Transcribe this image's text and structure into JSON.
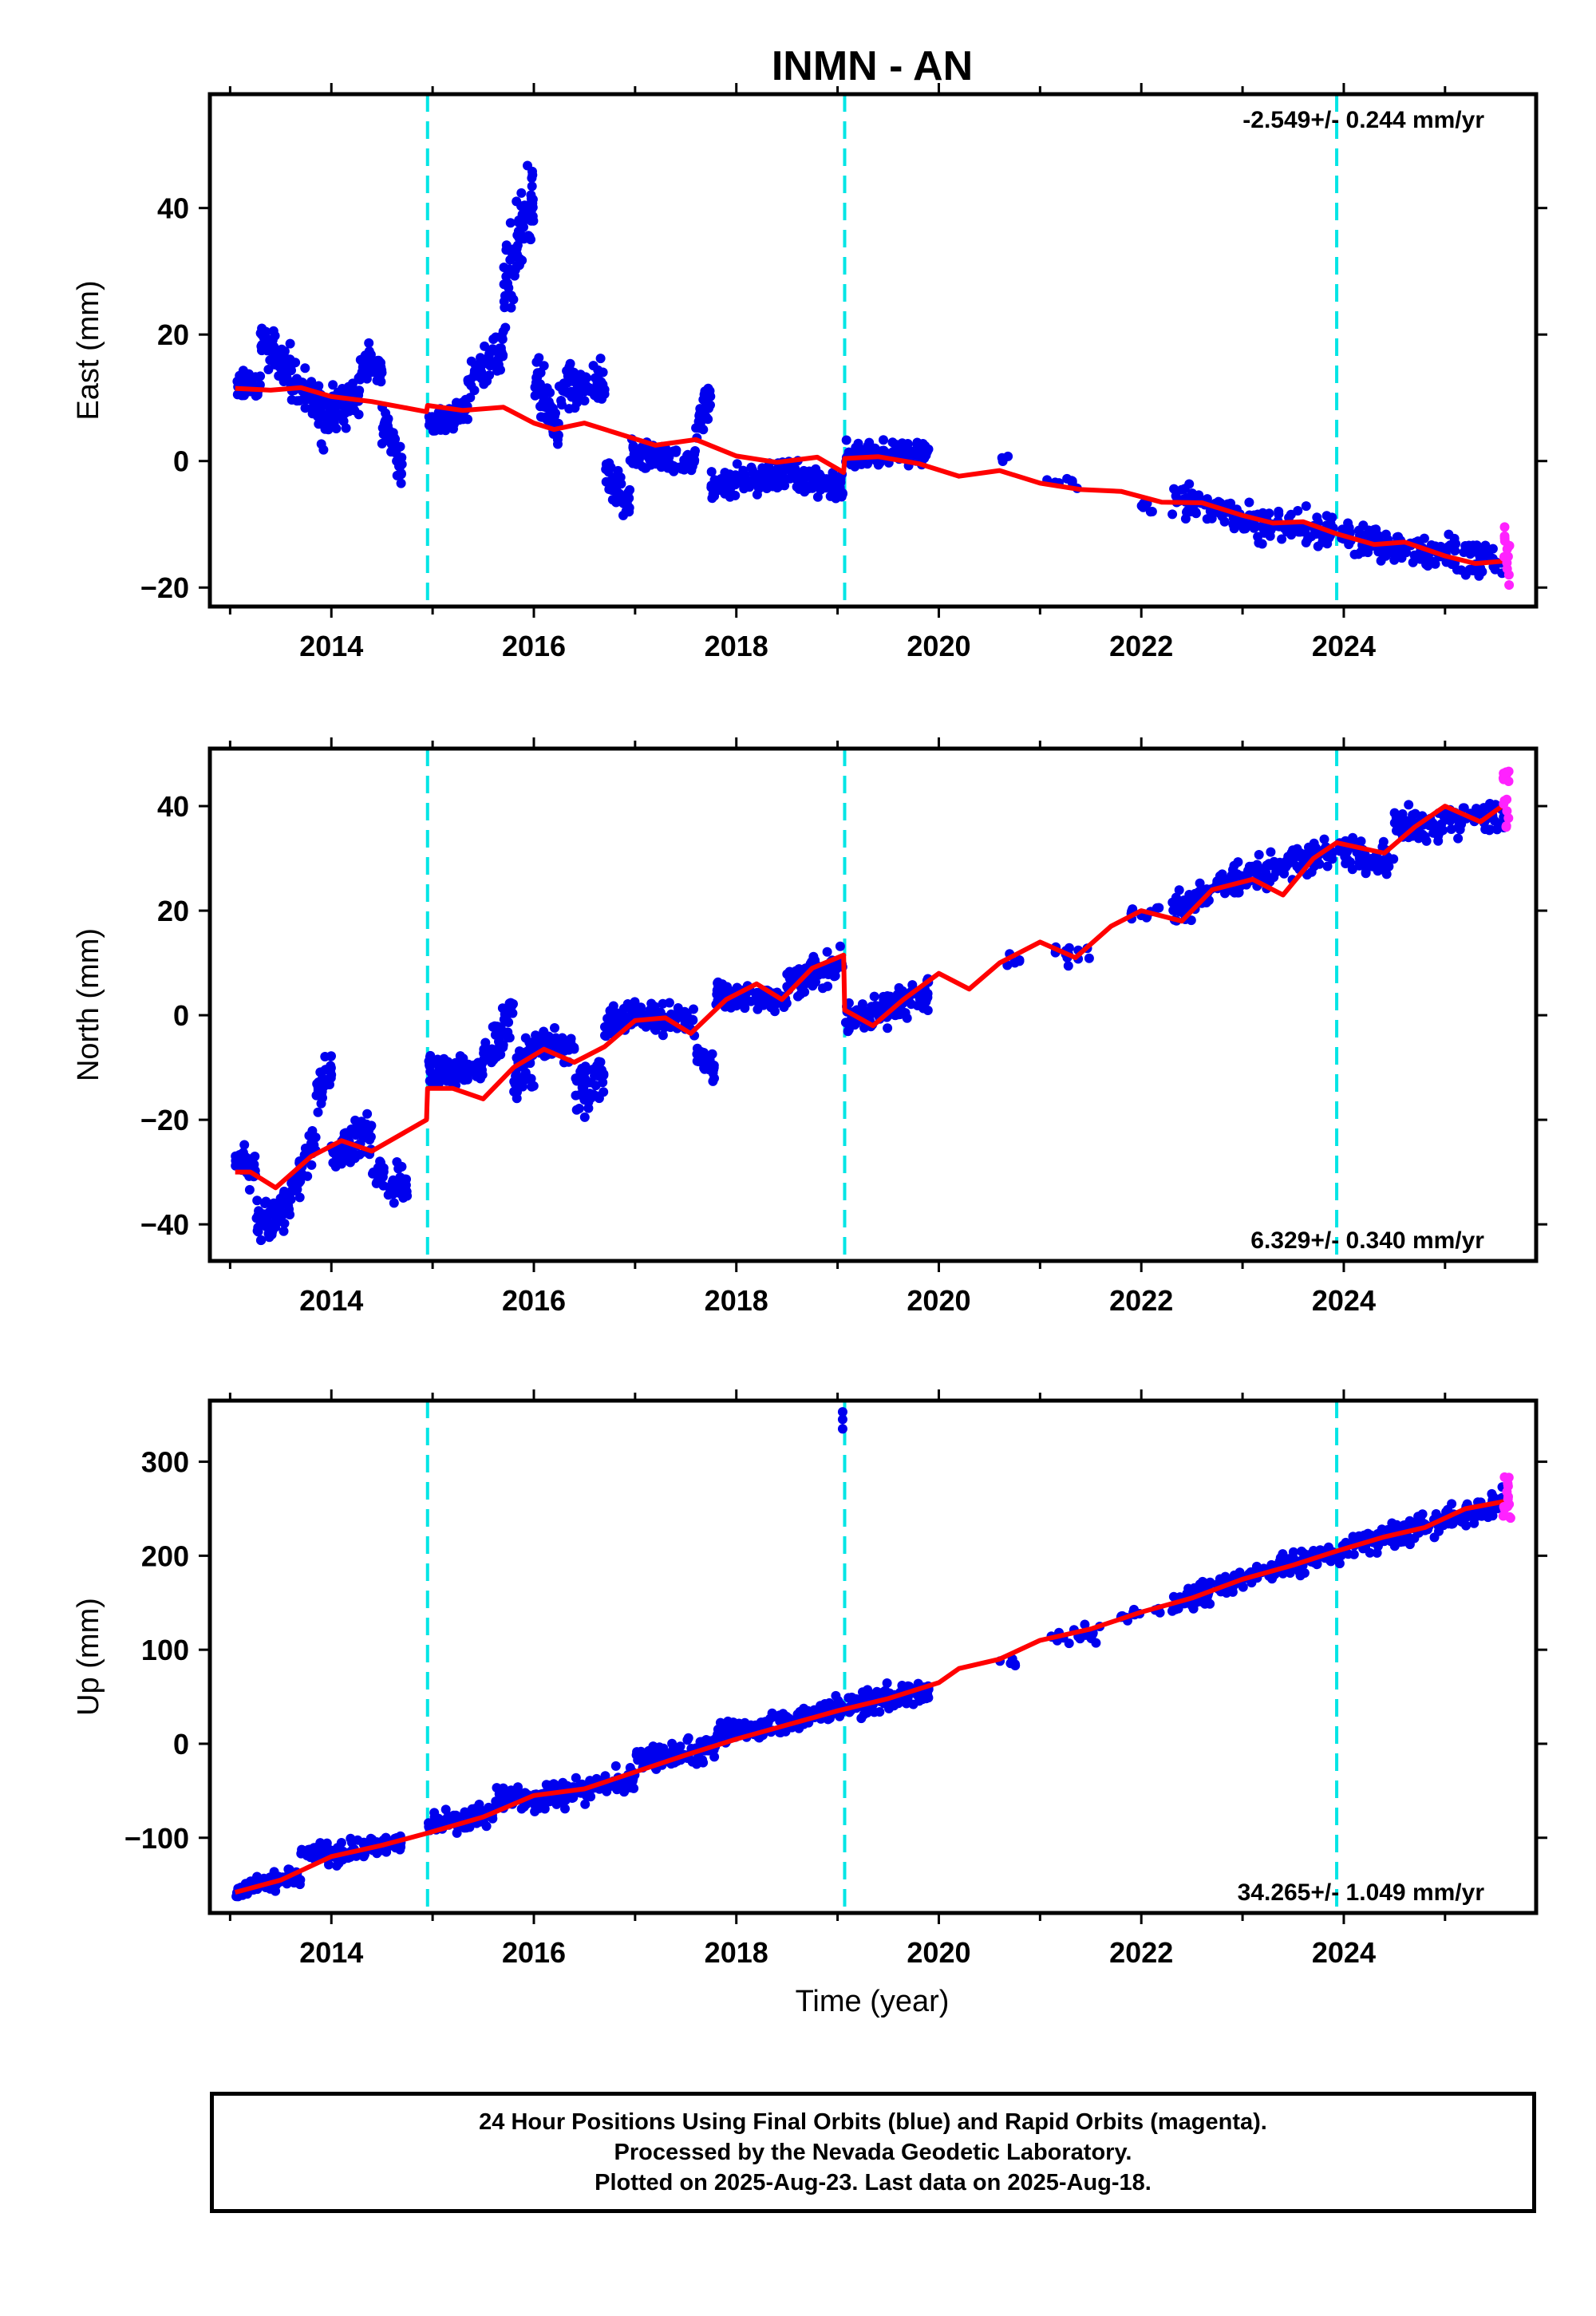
{
  "page": {
    "title": "INMN - AN",
    "xlabel": "Time (year)",
    "footer_lines": [
      "24 Hour Positions Using Final Orbits (blue) and Rapid Orbits (magenta).",
      "Processed by the Nevada Geodetic Laboratory.",
      "Plotted on 2025-Aug-23. Last data on 2025-Aug-18."
    ]
  },
  "colors": {
    "final_orbits": "#0000ee",
    "rapid_orbits": "#ff22ff",
    "model": "#ff0000",
    "breaks": "#00e5e5"
  },
  "chart_data": [
    {
      "type": "scatter",
      "component": "east",
      "ylabel": "East (mm)",
      "rate": "-2.549+/- 0.244 mm/yr",
      "xlim": [
        2012.8,
        2025.9
      ],
      "ylim": [
        -23,
        58
      ],
      "yticks": [
        -20,
        0,
        20,
        40
      ],
      "xticks": [
        2014,
        2016,
        2018,
        2020,
        2022,
        2024
      ],
      "breaks": [
        2014.95,
        2019.07,
        2023.93
      ],
      "model": [
        [
          2013.05,
          11.5
        ],
        [
          2013.4,
          11.2
        ],
        [
          2013.7,
          11.6
        ],
        [
          2014.0,
          10.2
        ],
        [
          2014.4,
          9.4
        ],
        [
          2014.94,
          7.8
        ],
        [
          2014.95,
          8.8
        ],
        [
          2015.3,
          8.0
        ],
        [
          2015.7,
          8.5
        ],
        [
          2016.0,
          6.0
        ],
        [
          2016.2,
          5.0
        ],
        [
          2016.5,
          6.0
        ],
        [
          2016.8,
          4.5
        ],
        [
          2017.2,
          2.5
        ],
        [
          2017.6,
          3.4
        ],
        [
          2018.0,
          0.8
        ],
        [
          2018.4,
          -0.2
        ],
        [
          2018.8,
          0.6
        ],
        [
          2019.06,
          -1.8
        ],
        [
          2019.07,
          0.4
        ],
        [
          2019.4,
          0.7
        ],
        [
          2019.8,
          -0.4
        ],
        [
          2020.2,
          -2.4
        ],
        [
          2020.6,
          -1.5
        ],
        [
          2021.0,
          -3.5
        ],
        [
          2021.4,
          -4.5
        ],
        [
          2021.8,
          -4.8
        ],
        [
          2022.2,
          -6.5
        ],
        [
          2022.6,
          -6.6
        ],
        [
          2023.0,
          -8.6
        ],
        [
          2023.3,
          -9.8
        ],
        [
          2023.6,
          -9.6
        ],
        [
          2023.93,
          -11.5
        ],
        [
          2024.3,
          -13.2
        ],
        [
          2024.6,
          -12.8
        ],
        [
          2025.0,
          -15.0
        ],
        [
          2025.3,
          -16.2
        ],
        [
          2025.6,
          -15.8
        ]
      ],
      "scatter_segments": [
        {
          "x0": 2013.05,
          "x1": 2013.3,
          "y0": 12,
          "y1": 12,
          "spread": 2.0,
          "n": 50
        },
        {
          "x0": 2013.3,
          "x1": 2013.6,
          "y0": 19,
          "y1": 15,
          "spread": 3.0,
          "n": 60
        },
        {
          "x0": 2013.6,
          "x1": 2013.9,
          "y0": 13,
          "y1": 9,
          "spread": 3.0,
          "n": 60
        },
        {
          "x0": 2013.9,
          "x1": 2014.3,
          "y0": 6,
          "y1": 12,
          "spread": 4.0,
          "n": 70
        },
        {
          "x0": 2014.3,
          "x1": 2014.5,
          "y0": 16,
          "y1": 14,
          "spread": 2.5,
          "n": 50
        },
        {
          "x0": 2014.5,
          "x1": 2014.7,
          "y0": 6,
          "y1": 0,
          "spread": 3.0,
          "n": 50
        },
        {
          "x0": 2014.96,
          "x1": 2015.35,
          "y0": 6,
          "y1": 8,
          "spread": 2.0,
          "n": 70
        },
        {
          "x0": 2015.35,
          "x1": 2015.7,
          "y0": 12,
          "y1": 18,
          "spread": 3.0,
          "n": 60
        },
        {
          "x0": 2015.7,
          "x1": 2016.0,
          "y0": 25,
          "y1": 42,
          "spread": 7.0,
          "n": 80
        },
        {
          "x0": 2016.0,
          "x1": 2016.25,
          "y0": 14,
          "y1": 4,
          "spread": 4.0,
          "n": 50
        },
        {
          "x0": 2016.25,
          "x1": 2016.7,
          "y0": 11,
          "y1": 13,
          "spread": 3.5,
          "n": 70
        },
        {
          "x0": 2016.7,
          "x1": 2016.95,
          "y0": -2,
          "y1": -7,
          "spread": 2.5,
          "n": 40
        },
        {
          "x0": 2016.95,
          "x1": 2017.6,
          "y0": 1,
          "y1": 0,
          "spread": 2.0,
          "n": 90
        },
        {
          "x0": 2017.6,
          "x1": 2017.75,
          "y0": 6,
          "y1": 10,
          "spread": 2.5,
          "n": 30
        },
        {
          "x0": 2017.75,
          "x1": 2018.5,
          "y0": -4,
          "y1": -2,
          "spread": 2.5,
          "n": 100
        },
        {
          "x0": 2018.5,
          "x1": 2019.05,
          "y0": -2,
          "y1": -4,
          "spread": 2.5,
          "n": 80
        },
        {
          "x0": 2019.08,
          "x1": 2019.9,
          "y0": 1,
          "y1": 1.5,
          "spread": 2.0,
          "n": 110
        },
        {
          "x0": 2020.6,
          "x1": 2020.7,
          "y0": 0,
          "y1": 0,
          "spread": 1.0,
          "n": 4
        },
        {
          "x0": 2021.05,
          "x1": 2021.5,
          "y0": -3.5,
          "y1": -3.5,
          "spread": 1.0,
          "n": 8
        },
        {
          "x0": 2022.0,
          "x1": 2022.3,
          "y0": -7,
          "y1": -7,
          "spread": 1.0,
          "n": 6
        },
        {
          "x0": 2022.3,
          "x1": 2022.9,
          "y0": -6,
          "y1": -8,
          "spread": 2.0,
          "n": 60
        },
        {
          "x0": 2022.9,
          "x1": 2023.9,
          "y0": -9.5,
          "y1": -11,
          "spread": 2.5,
          "n": 110
        },
        {
          "x0": 2023.95,
          "x1": 2025.6,
          "y0": -12,
          "y1": -16,
          "spread": 2.5,
          "n": 170
        }
      ],
      "rapid": {
        "x0": 2025.57,
        "x1": 2025.65,
        "y0": -20,
        "y1": -10,
        "n": 14
      }
    },
    {
      "type": "scatter",
      "component": "north",
      "ylabel": "North (mm)",
      "rate": "6.329+/- 0.340 mm/yr",
      "xlim": [
        2012.8,
        2025.9
      ],
      "ylim": [
        -47,
        51
      ],
      "yticks": [
        -40,
        -20,
        0,
        20,
        40
      ],
      "xticks": [
        2014,
        2016,
        2018,
        2020,
        2022,
        2024
      ],
      "breaks": [
        2014.95,
        2019.07,
        2023.93
      ],
      "model": [
        [
          2013.05,
          -30.0
        ],
        [
          2013.2,
          -30.0
        ],
        [
          2013.45,
          -33.0
        ],
        [
          2013.8,
          -27.0
        ],
        [
          2014.1,
          -24.0
        ],
        [
          2014.4,
          -26.0
        ],
        [
          2014.94,
          -20.0
        ],
        [
          2014.95,
          -14.0
        ],
        [
          2015.2,
          -14.0
        ],
        [
          2015.5,
          -16.0
        ],
        [
          2015.8,
          -10.0
        ],
        [
          2016.1,
          -6.5
        ],
        [
          2016.4,
          -9.0
        ],
        [
          2016.7,
          -6.0
        ],
        [
          2017.0,
          -1.0
        ],
        [
          2017.3,
          -0.5
        ],
        [
          2017.55,
          -3.5
        ],
        [
          2017.9,
          3.0
        ],
        [
          2018.2,
          6.0
        ],
        [
          2018.45,
          3.0
        ],
        [
          2018.75,
          9.0
        ],
        [
          2019.06,
          11.5
        ],
        [
          2019.07,
          1.0
        ],
        [
          2019.35,
          -2.0
        ],
        [
          2019.65,
          3.0
        ],
        [
          2020.0,
          8.0
        ],
        [
          2020.3,
          5.0
        ],
        [
          2020.6,
          10.0
        ],
        [
          2021.0,
          14.0
        ],
        [
          2021.35,
          11.0
        ],
        [
          2021.7,
          17.0
        ],
        [
          2022.0,
          20.0
        ],
        [
          2022.4,
          18.0
        ],
        [
          2022.7,
          24.0
        ],
        [
          2023.1,
          26.0
        ],
        [
          2023.4,
          23.0
        ],
        [
          2023.7,
          30.0
        ],
        [
          2023.93,
          33.0
        ],
        [
          2024.4,
          31.0
        ],
        [
          2024.7,
          36.0
        ],
        [
          2025.0,
          40.0
        ],
        [
          2025.35,
          37.0
        ],
        [
          2025.6,
          40.5
        ]
      ],
      "scatter_segments": [
        {
          "x0": 2013.05,
          "x1": 2013.25,
          "y0": -28,
          "y1": -30,
          "spread": 3.0,
          "n": 40
        },
        {
          "x0": 2013.25,
          "x1": 2013.6,
          "y0": -40,
          "y1": -37,
          "spread": 4.0,
          "n": 60
        },
        {
          "x0": 2013.6,
          "x1": 2013.85,
          "y0": -34,
          "y1": -24,
          "spread": 4.0,
          "n": 50
        },
        {
          "x0": 2013.85,
          "x1": 2014.0,
          "y0": -15,
          "y1": -10,
          "spread": 5.0,
          "n": 40
        },
        {
          "x0": 2014.0,
          "x1": 2014.4,
          "y0": -26,
          "y1": -22,
          "spread": 4.0,
          "n": 60
        },
        {
          "x0": 2014.4,
          "x1": 2014.75,
          "y0": -30,
          "y1": -33,
          "spread": 4.0,
          "n": 50
        },
        {
          "x0": 2014.96,
          "x1": 2015.5,
          "y0": -11,
          "y1": -10,
          "spread": 3.0,
          "n": 80
        },
        {
          "x0": 2015.5,
          "x1": 2015.8,
          "y0": -8,
          "y1": 0,
          "spread": 4.0,
          "n": 50
        },
        {
          "x0": 2015.8,
          "x1": 2016.0,
          "y0": -12,
          "y1": -8,
          "spread": 6.0,
          "n": 40
        },
        {
          "x0": 2016.0,
          "x1": 2016.4,
          "y0": -5,
          "y1": -6,
          "spread": 3.0,
          "n": 60
        },
        {
          "x0": 2016.4,
          "x1": 2016.7,
          "y0": -14,
          "y1": -12,
          "spread": 5.0,
          "n": 50
        },
        {
          "x0": 2016.7,
          "x1": 2017.0,
          "y0": -2,
          "y1": 0,
          "spread": 3.0,
          "n": 50
        },
        {
          "x0": 2017.0,
          "x1": 2017.6,
          "y0": 0,
          "y1": -1,
          "spread": 2.5,
          "n": 80
        },
        {
          "x0": 2017.6,
          "x1": 2017.8,
          "y0": -8,
          "y1": -10,
          "spread": 3.0,
          "n": 30
        },
        {
          "x0": 2017.8,
          "x1": 2018.5,
          "y0": 4,
          "y1": 3,
          "spread": 2.5,
          "n": 90
        },
        {
          "x0": 2018.5,
          "x1": 2019.05,
          "y0": 6,
          "y1": 10,
          "spread": 3.0,
          "n": 80
        },
        {
          "x0": 2019.08,
          "x1": 2019.9,
          "y0": -1,
          "y1": 4,
          "spread": 3.0,
          "n": 110
        },
        {
          "x0": 2020.6,
          "x1": 2020.8,
          "y0": 9,
          "y1": 11,
          "spread": 1.5,
          "n": 6
        },
        {
          "x0": 2021.1,
          "x1": 2021.5,
          "y0": 12,
          "y1": 11,
          "spread": 2.0,
          "n": 14
        },
        {
          "x0": 2021.9,
          "x1": 2022.2,
          "y0": 19,
          "y1": 20,
          "spread": 1.5,
          "n": 10
        },
        {
          "x0": 2022.3,
          "x1": 2022.9,
          "y0": 20,
          "y1": 25,
          "spread": 3.0,
          "n": 70
        },
        {
          "x0": 2022.9,
          "x1": 2023.9,
          "y0": 26,
          "y1": 31,
          "spread": 3.0,
          "n": 110
        },
        {
          "x0": 2023.95,
          "x1": 2024.5,
          "y0": 32,
          "y1": 29,
          "spread": 3.0,
          "n": 60
        },
        {
          "x0": 2024.5,
          "x1": 2025.6,
          "y0": 36,
          "y1": 38,
          "spread": 3.0,
          "n": 120
        }
      ],
      "rapid": {
        "x0": 2025.57,
        "x1": 2025.65,
        "y0": 35,
        "y1": 47,
        "n": 14
      }
    },
    {
      "type": "scatter",
      "component": "up",
      "ylabel": "Up (mm)",
      "rate": "34.265+/- 1.049 mm/yr",
      "xlim": [
        2012.8,
        2025.9
      ],
      "ylim": [
        -180,
        365
      ],
      "yticks": [
        -100,
        0,
        100,
        200,
        300
      ],
      "xticks": [
        2014,
        2016,
        2018,
        2020,
        2022,
        2024
      ],
      "breaks": [
        2014.95,
        2019.07,
        2023.93
      ],
      "model": [
        [
          2013.05,
          -158.0
        ],
        [
          2013.5,
          -145.0
        ],
        [
          2014.0,
          -120.0
        ],
        [
          2014.5,
          -108.0
        ],
        [
          2014.95,
          -95.0
        ],
        [
          2015.5,
          -78.0
        ],
        [
          2016.0,
          -55.0
        ],
        [
          2016.5,
          -48.0
        ],
        [
          2017.0,
          -30.0
        ],
        [
          2017.5,
          -12.0
        ],
        [
          2018.0,
          5.0
        ],
        [
          2018.5,
          20.0
        ],
        [
          2019.0,
          35.0
        ],
        [
          2019.5,
          48.0
        ],
        [
          2020.0,
          65.0
        ],
        [
          2020.2,
          80.0
        ],
        [
          2020.6,
          90.0
        ],
        [
          2021.0,
          110.0
        ],
        [
          2021.5,
          122.0
        ],
        [
          2022.0,
          140.0
        ],
        [
          2022.5,
          155.0
        ],
        [
          2023.0,
          175.0
        ],
        [
          2023.5,
          190.0
        ],
        [
          2023.93,
          205.0
        ],
        [
          2024.4,
          220.0
        ],
        [
          2024.8,
          230.0
        ],
        [
          2025.2,
          250.0
        ],
        [
          2025.6,
          258.0
        ]
      ],
      "scatter_segments": [
        {
          "x0": 2013.05,
          "x1": 2013.7,
          "y0": -155,
          "y1": -140,
          "spread": 10,
          "n": 80
        },
        {
          "x0": 2013.7,
          "x1": 2014.1,
          "y0": -115,
          "y1": -115,
          "spread": 12,
          "n": 50
        },
        {
          "x0": 2014.1,
          "x1": 2014.7,
          "y0": -115,
          "y1": -105,
          "spread": 10,
          "n": 70
        },
        {
          "x0": 2014.96,
          "x1": 2015.6,
          "y0": -85,
          "y1": -75,
          "spread": 12,
          "n": 80
        },
        {
          "x0": 2015.6,
          "x1": 2016.3,
          "y0": -60,
          "y1": -50,
          "spread": 15,
          "n": 90
        },
        {
          "x0": 2016.3,
          "x1": 2017.0,
          "y0": -55,
          "y1": -35,
          "spread": 12,
          "n": 90
        },
        {
          "x0": 2017.0,
          "x1": 2017.8,
          "y0": -15,
          "y1": -5,
          "spread": 12,
          "n": 100
        },
        {
          "x0": 2017.8,
          "x1": 2018.6,
          "y0": 10,
          "y1": 25,
          "spread": 12,
          "n": 100
        },
        {
          "x0": 2018.6,
          "x1": 2019.05,
          "y0": 25,
          "y1": 38,
          "spread": 12,
          "n": 60
        },
        {
          "x0": 2019.08,
          "x1": 2019.9,
          "y0": 40,
          "y1": 55,
          "spread": 12,
          "n": 110
        },
        {
          "x0": 2020.6,
          "x1": 2020.8,
          "y0": 85,
          "y1": 88,
          "spread": 6,
          "n": 6
        },
        {
          "x0": 2021.1,
          "x1": 2021.6,
          "y0": 110,
          "y1": 118,
          "spread": 8,
          "n": 16
        },
        {
          "x0": 2021.8,
          "x1": 2022.2,
          "y0": 135,
          "y1": 145,
          "spread": 6,
          "n": 12
        },
        {
          "x0": 2022.3,
          "x1": 2022.9,
          "y0": 150,
          "y1": 170,
          "spread": 12,
          "n": 70
        },
        {
          "x0": 2022.9,
          "x1": 2023.9,
          "y0": 172,
          "y1": 205,
          "spread": 12,
          "n": 110
        },
        {
          "x0": 2023.95,
          "x1": 2025.6,
          "y0": 205,
          "y1": 258,
          "spread": 14,
          "n": 170
        }
      ],
      "outliers": [
        [
          2019.05,
          335
        ],
        [
          2019.05,
          345
        ],
        [
          2019.05,
          353
        ]
      ],
      "rapid": {
        "x0": 2025.57,
        "x1": 2025.65,
        "y0": 235,
        "y1": 285,
        "n": 14
      }
    }
  ]
}
